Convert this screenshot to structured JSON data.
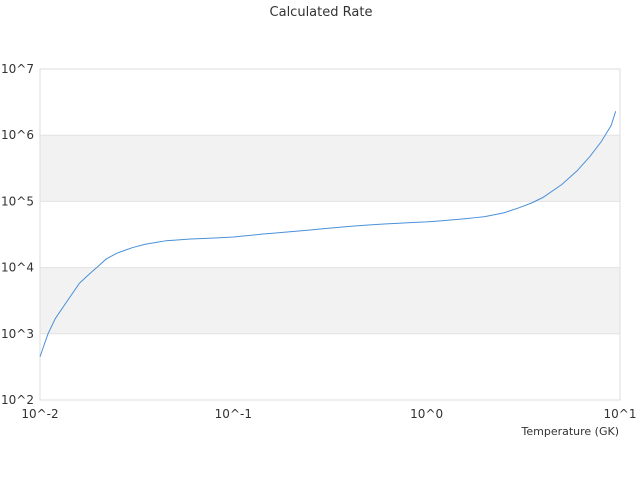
{
  "chart_data": {
    "type": "line",
    "title": "Calculated Rate",
    "xlabel": "Temperature (GK)",
    "ylabel": "",
    "xscale": "log",
    "yscale": "log",
    "xlim": [
      0.01,
      10
    ],
    "ylim": [
      100,
      10000000
    ],
    "x_tick_labels": [
      "10^-2",
      "10^-1",
      "10^0",
      "10^1"
    ],
    "y_tick_labels": [
      "10^2",
      "10^3",
      "10^4",
      "10^5",
      "10^6",
      "10^7"
    ],
    "grid": "alternating horizontal bands",
    "legend": "none",
    "line_color": "#4a90d9",
    "band_color": "#f2f2f2",
    "series": [
      {
        "x": [
          0.01,
          0.011,
          0.012,
          0.014,
          0.016,
          0.018,
          0.02,
          0.022,
          0.025,
          0.03,
          0.035,
          0.04,
          0.045,
          0.05,
          0.06,
          0.07,
          0.08,
          0.09,
          0.1,
          0.12,
          0.14,
          0.16,
          0.18,
          0.2,
          0.25,
          0.3,
          0.35,
          0.4,
          0.45,
          0.5,
          0.6,
          0.7,
          0.8,
          0.9,
          1.0,
          1.2,
          1.4,
          1.6,
          1.8,
          2.0,
          2.5,
          3.0,
          3.5,
          4.0,
          5.0,
          6.0,
          7.0,
          8.0,
          9.0,
          9.5
        ],
        "y": [
          450,
          1000,
          1700,
          3300,
          5800,
          8000,
          10500,
          13500,
          16500,
          20000,
          22500,
          24000,
          25500,
          26000,
          27000,
          27500,
          28000,
          28500,
          29000,
          30500,
          32000,
          33000,
          34000,
          35000,
          37000,
          39000,
          40500,
          42000,
          43000,
          44000,
          45500,
          46500,
          47500,
          48500,
          49000,
          51000,
          53000,
          55000,
          57000,
          59000,
          67000,
          80000,
          95000,
          115000,
          180000,
          290000,
          480000,
          800000,
          1400000,
          2300000
        ]
      }
    ]
  }
}
